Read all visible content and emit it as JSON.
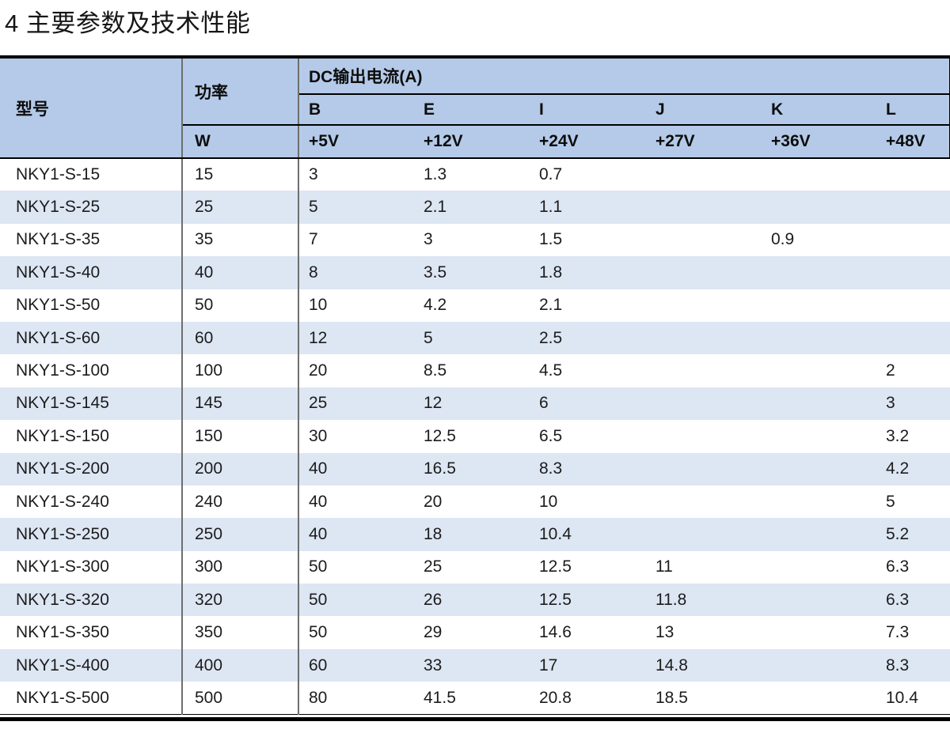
{
  "page": {
    "title": "4 主要参数及技术性能"
  },
  "colors": {
    "header_bg": "#b4cae8",
    "stripe_bg": "#dde6f3",
    "grid_gray": "#6f6f6f",
    "border_black": "#000000",
    "text": "#1c1c1c"
  },
  "table": {
    "header": {
      "model": "型号",
      "power": "功率",
      "power_unit": "W",
      "dc_group": "DC输出电流(A)",
      "channels": [
        "B",
        "E",
        "I",
        "J",
        "K",
        "L"
      ],
      "voltages": [
        "+5V",
        "+12V",
        "+24V",
        "+27V",
        "+36V",
        "+48V"
      ]
    },
    "rows": [
      {
        "model": "NKY1-S-15",
        "cells": [
          "15",
          "3",
          "1.3",
          "0.7",
          "",
          "",
          ""
        ]
      },
      {
        "model": "NKY1-S-25",
        "cells": [
          "25",
          "5",
          "2.1",
          "1.1",
          "",
          "",
          ""
        ]
      },
      {
        "model": "NKY1-S-35",
        "cells": [
          "35",
          "7",
          "3",
          "1.5",
          "",
          "0.9",
          ""
        ]
      },
      {
        "model": "NKY1-S-40",
        "cells": [
          "40",
          "8",
          "3.5",
          "1.8",
          "",
          "",
          ""
        ]
      },
      {
        "model": "NKY1-S-50",
        "cells": [
          "50",
          "10",
          "4.2",
          "2.1",
          "",
          "",
          ""
        ]
      },
      {
        "model": "NKY1-S-60",
        "cells": [
          "60",
          "12",
          "5",
          "2.5",
          "",
          "",
          ""
        ]
      },
      {
        "model": "NKY1-S-100",
        "cells": [
          "100",
          "20",
          "8.5",
          "4.5",
          "",
          "",
          "2"
        ]
      },
      {
        "model": "NKY1-S-145",
        "cells": [
          "145",
          "25",
          "12",
          "6",
          "",
          "",
          "3"
        ]
      },
      {
        "model": "NKY1-S-150",
        "cells": [
          "150",
          "30",
          "12.5",
          "6.5",
          "",
          "",
          "3.2"
        ]
      },
      {
        "model": "NKY1-S-200",
        "cells": [
          "200",
          "40",
          "16.5",
          "8.3",
          "",
          "",
          "4.2"
        ]
      },
      {
        "model": "NKY1-S-240",
        "cells": [
          "240",
          "40",
          "20",
          "10",
          "",
          "",
          "5"
        ]
      },
      {
        "model": "NKY1-S-250",
        "cells": [
          "250",
          "40",
          "18",
          "10.4",
          "",
          "",
          "5.2"
        ]
      },
      {
        "model": "NKY1-S-300",
        "cells": [
          "300",
          "50",
          "25",
          "12.5",
          "11",
          "",
          "6.3"
        ]
      },
      {
        "model": "NKY1-S-320",
        "cells": [
          "320",
          "50",
          "26",
          "12.5",
          "11.8",
          "",
          "6.3"
        ]
      },
      {
        "model": "NKY1-S-350",
        "cells": [
          "350",
          "50",
          "29",
          "14.6",
          "13",
          "",
          "7.3"
        ]
      },
      {
        "model": "NKY1-S-400",
        "cells": [
          "400",
          "60",
          "33",
          "17",
          "14.8",
          "",
          "8.3"
        ]
      },
      {
        "model": "NKY1-S-500",
        "cells": [
          "500",
          "80",
          "41.5",
          "20.8",
          "18.5",
          "",
          "10.4"
        ]
      }
    ]
  }
}
